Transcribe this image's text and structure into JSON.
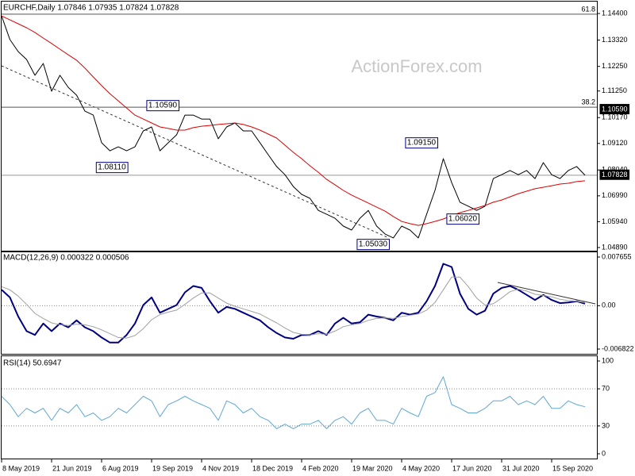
{
  "chart_data": [
    {
      "type": "line",
      "title": "EURCHF,Daily  1.07846 1.07935 1.07824 1.07828",
      "watermark": "ActionForex.com",
      "series": [
        {
          "color": "#000000",
          "values": [
            1.143,
            1.1334,
            1.1285,
            1.1253,
            1.1189,
            1.1237,
            1.1124,
            1.1189,
            1.114,
            1.1108,
            1.1043,
            1.1027,
            1.0915,
            1.0882,
            1.0898,
            1.0882,
            1.0898,
            1.0963,
            1.0979,
            1.0882,
            1.0915,
            1.0947,
            1.1027,
            1.1027,
            1.1011,
            1.1011,
            1.0931,
            1.0979,
            1.0995,
            1.0963,
            1.0963,
            1.0915,
            1.0866,
            1.0818,
            1.0785,
            1.0737,
            1.0705,
            1.0689,
            1.064,
            1.0624,
            1.0608,
            1.0576,
            1.056,
            1.0608,
            1.064,
            1.0576,
            1.0544,
            1.0528,
            1.0576,
            1.056,
            1.0528,
            1.0624,
            1.0721,
            1.085,
            1.0753,
            1.0673,
            1.0657,
            1.064,
            1.0657,
            1.0769,
            1.0785,
            1.0802,
            1.0785,
            1.0802,
            1.0769,
            1.0834,
            1.0785,
            1.0769,
            1.0802,
            1.0818,
            1.07828
          ]
        },
        {
          "color": "#e00000",
          "values": [
            1.143,
            1.1414,
            1.1398,
            1.1382,
            1.1363,
            1.134,
            1.1318,
            1.1295,
            1.1272,
            1.125,
            1.1218,
            1.1182,
            1.1147,
            1.1114,
            1.1085,
            1.1056,
            1.1027,
            1.1011,
            1.0995,
            1.0979,
            1.0973,
            1.0966,
            1.0966,
            1.0976,
            1.0982,
            1.0985,
            1.0989,
            1.0992,
            1.0995,
            1.0989,
            1.0979,
            1.0966,
            1.095,
            1.0934,
            1.0905,
            1.0876,
            1.085,
            1.0821,
            1.0795,
            1.0766,
            1.0744,
            1.0721,
            1.0702,
            1.0686,
            1.067,
            1.0653,
            1.0637,
            1.0615,
            1.0595,
            1.0586,
            1.0579,
            1.0586,
            1.0595,
            1.0605,
            1.0618,
            1.0631,
            1.064,
            1.065,
            1.066,
            1.0673,
            1.0682,
            1.0695,
            1.0708,
            1.0718,
            1.0728,
            1.0734,
            1.074,
            1.0747,
            1.075,
            1.0757,
            1.076
          ]
        }
      ],
      "ylim": [
        1.0489,
        1.144
      ],
      "yticks": [
        {
          "value": 1.144,
          "label": "1.14400"
        },
        {
          "value": 1.1332,
          "label": "1.13320"
        },
        {
          "value": 1.1225,
          "label": "1.12250"
        },
        {
          "value": 1.1125,
          "label": "1.11250"
        },
        {
          "value": 1.1017,
          "label": "1.10170"
        },
        {
          "value": 1.0912,
          "label": "1.09120"
        },
        {
          "value": 1.0804,
          "label": "1.08040"
        },
        {
          "value": 1.0699,
          "label": "1.06990"
        },
        {
          "value": 1.0594,
          "label": "1.05940"
        },
        {
          "value": 1.0489,
          "label": "1.04890"
        }
      ],
      "grid": false,
      "hlines": [
        {
          "value": 1.1437,
          "label": "61.8"
        },
        {
          "value": 1.1059,
          "label": "38.2",
          "price_label": "1.10590"
        }
      ],
      "last_price": 1.07828,
      "annotations": [
        {
          "value": 1.1059,
          "label": "1.10590"
        },
        {
          "value": 1.0811,
          "label": "1.08110"
        },
        {
          "value": 1.0915,
          "label": "1.09150"
        },
        {
          "value": 1.0602,
          "label": "1.06020"
        },
        {
          "value": 1.0503,
          "label": "1.05030"
        }
      ]
    },
    {
      "type": "line",
      "title": "MACD(12,26,9) 0.000322 0.000506",
      "series": [
        {
          "color": "#000080",
          "values": [
            0.0025,
            0.0013,
            -0.0017,
            -0.004,
            -0.0046,
            -0.0028,
            -0.004,
            -0.0028,
            -0.0034,
            -0.0023,
            -0.0034,
            -0.004,
            -0.005,
            -0.0058,
            -0.0058,
            -0.0046,
            -0.0028,
            0.0001,
            0.0013,
            -0.0011,
            -0.0005,
            0.0001,
            0.0021,
            0.0031,
            0.0028,
            0.0007,
            -0.0011,
            -0.0002,
            -0.0005,
            -0.0011,
            -0.0017,
            -0.0023,
            -0.0034,
            -0.0043,
            -0.005,
            -0.0052,
            -0.0046,
            -0.0046,
            -0.004,
            -0.0046,
            -0.0028,
            -0.0019,
            -0.0028,
            -0.0026,
            -0.0014,
            -0.0017,
            -0.0019,
            -0.0023,
            -0.0011,
            -0.0014,
            -0.0011,
            0.0007,
            0.0031,
            0.0066,
            0.0061,
            0.0019,
            -0.0005,
            -0.0014,
            -0.0008,
            0.0019,
            0.0028,
            0.0031,
            0.0025,
            0.0017,
            0.0009,
            0.0017,
            0.0009,
            0.0004,
            0.0005,
            0.0007,
            0.000322
          ]
        },
        {
          "color": "#a0a0a0",
          "values": [
            0.003,
            0.0025,
            0.0015,
            0.0002,
            -0.0012,
            -0.002,
            -0.0027,
            -0.003,
            -0.0031,
            -0.0029,
            -0.003,
            -0.0033,
            -0.0038,
            -0.0044,
            -0.005,
            -0.0051,
            -0.0047,
            -0.0036,
            -0.0022,
            -0.0014,
            -0.001,
            -0.0007,
            0.0002,
            0.0012,
            0.002,
            0.002,
            0.0012,
            0.0004,
            -0.0001,
            -0.0005,
            -0.0009,
            -0.0013,
            -0.002,
            -0.0027,
            -0.0035,
            -0.0042,
            -0.0045,
            -0.0046,
            -0.0044,
            -0.0045,
            -0.004,
            -0.0033,
            -0.003,
            -0.0028,
            -0.0023,
            -0.002,
            -0.0019,
            -0.002,
            -0.0017,
            -0.0015,
            -0.0013,
            -0.0007,
            0.0005,
            0.0025,
            0.0045,
            0.0045,
            0.003,
            0.0012,
            0.0001,
            0.0003,
            0.0012,
            0.0022,
            0.0026,
            0.0023,
            0.0018,
            0.0016,
            0.0014,
            0.001,
            0.0008,
            0.0007,
            0.000506
          ]
        }
      ],
      "ylim": [
        -0.006822,
        0.007655
      ],
      "yticks": [
        0.007655,
        {
          "value": 0,
          "label": "0.00"
        },
        -0.006822
      ],
      "grid": true
    },
    {
      "type": "line",
      "title": "RSI(14) 50.6947",
      "categories": [
        "8 May 2019",
        null,
        null,
        null,
        null,
        null,
        "21 Jun 2019",
        null,
        null,
        null,
        null,
        null,
        "6 Aug 2019",
        null,
        null,
        null,
        null,
        null,
        "19 Sep 2019",
        null,
        null,
        null,
        null,
        null,
        "4 Nov 2019",
        null,
        null,
        null,
        null,
        null,
        "18 Dec 2019",
        null,
        null,
        null,
        null,
        null,
        "4 Feb 2020",
        null,
        null,
        null,
        null,
        null,
        "19 Mar 2020",
        null,
        null,
        null,
        null,
        null,
        "4 May 2020",
        null,
        null,
        null,
        null,
        null,
        "17 Jun 2020",
        null,
        null,
        null,
        null,
        null,
        "31 Jul 2020",
        null,
        null,
        null,
        null,
        null,
        "15 Sep 2020",
        null,
        null,
        null,
        null
      ],
      "series": [
        {
          "color": "#5fa8d3",
          "values": [
            62,
            53,
            40,
            49,
            44,
            49,
            36,
            49,
            44,
            53,
            40,
            44,
            36,
            40,
            49,
            44,
            53,
            62,
            57,
            40,
            53,
            57,
            62,
            57,
            53,
            49,
            36,
            57,
            53,
            44,
            49,
            40,
            36,
            27,
            32,
            27,
            32,
            32,
            36,
            27,
            36,
            40,
            32,
            44,
            49,
            36,
            36,
            32,
            49,
            44,
            40,
            62,
            66,
            83,
            53,
            49,
            44,
            44,
            49,
            57,
            57,
            62,
            53,
            57,
            53,
            62,
            49,
            49,
            57,
            53,
            50.6947
          ]
        }
      ],
      "ylim": [
        0,
        100
      ],
      "yticks": [
        100,
        70,
        30,
        0
      ],
      "grid": true
    }
  ]
}
